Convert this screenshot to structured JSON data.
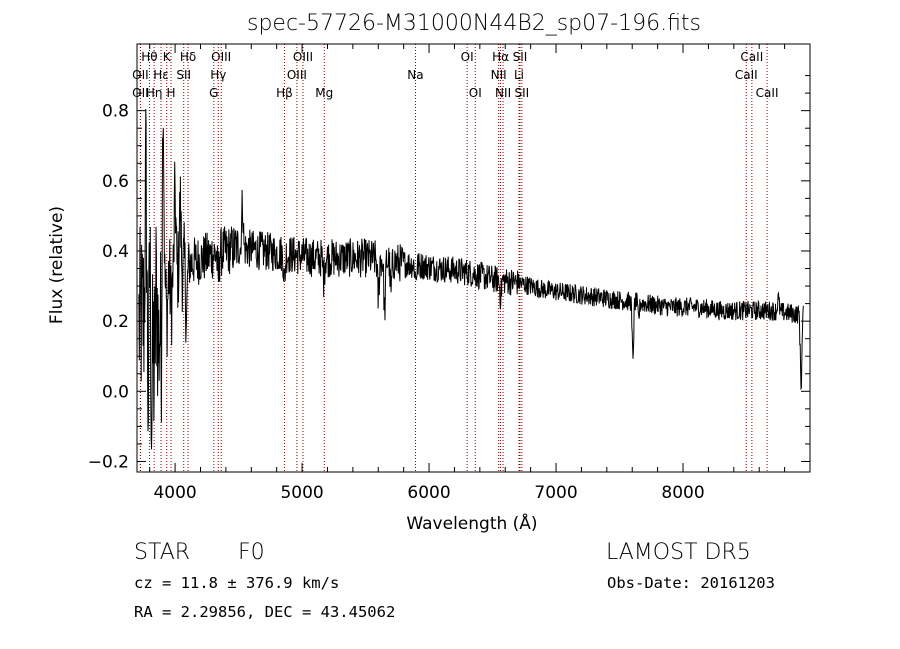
{
  "chart_data": {
    "type": "line",
    "title": "spec-57726-M31000N44B2_sp07-196.fits",
    "xlabel": "Wavelength (Å)",
    "ylabel": "Flux (relative)",
    "xlim": [
      3700,
      9000
    ],
    "ylim": [
      -0.23,
      0.99
    ],
    "xticks": [
      4000,
      5000,
      6000,
      7000,
      8000
    ],
    "yticks": [
      -0.2,
      0.0,
      0.2,
      0.4,
      0.6,
      0.8
    ],
    "ytick_labels": [
      "−0.2",
      "0.0",
      "0.2",
      "0.4",
      "0.6",
      "0.8"
    ],
    "grid": false,
    "line_color": "#000000",
    "marker_color": "#8b0000",
    "spectrum_continuum": [
      {
        "x": 3700,
        "y": 0.18
      },
      {
        "x": 3750,
        "y": 0.22
      },
      {
        "x": 3800,
        "y": 0.25
      },
      {
        "x": 3850,
        "y": 0.28
      },
      {
        "x": 3950,
        "y": 0.33
      },
      {
        "x": 4050,
        "y": 0.35
      },
      {
        "x": 4150,
        "y": 0.37
      },
      {
        "x": 4300,
        "y": 0.39
      },
      {
        "x": 4500,
        "y": 0.41
      },
      {
        "x": 4700,
        "y": 0.4
      },
      {
        "x": 4900,
        "y": 0.39
      },
      {
        "x": 5100,
        "y": 0.38
      },
      {
        "x": 5300,
        "y": 0.38
      },
      {
        "x": 5500,
        "y": 0.38
      },
      {
        "x": 5700,
        "y": 0.37
      },
      {
        "x": 5900,
        "y": 0.36
      },
      {
        "x": 6100,
        "y": 0.35
      },
      {
        "x": 6300,
        "y": 0.34
      },
      {
        "x": 6500,
        "y": 0.32
      },
      {
        "x": 6700,
        "y": 0.31
      },
      {
        "x": 6900,
        "y": 0.29
      },
      {
        "x": 7100,
        "y": 0.28
      },
      {
        "x": 7300,
        "y": 0.27
      },
      {
        "x": 7500,
        "y": 0.26
      },
      {
        "x": 7700,
        "y": 0.25
      },
      {
        "x": 7900,
        "y": 0.24
      },
      {
        "x": 8100,
        "y": 0.24
      },
      {
        "x": 8300,
        "y": 0.23
      },
      {
        "x": 8500,
        "y": 0.23
      },
      {
        "x": 8700,
        "y": 0.23
      },
      {
        "x": 8900,
        "y": 0.22
      }
    ],
    "spectrum_features": [
      {
        "x": 3770,
        "dy": 0.4
      },
      {
        "x": 3790,
        "dy": -0.32
      },
      {
        "x": 3800,
        "dy": 0.22
      },
      {
        "x": 3815,
        "dy": -0.35
      },
      {
        "x": 3835,
        "dy": -0.26
      },
      {
        "x": 3870,
        "dy": -0.18
      },
      {
        "x": 3890,
        "dy": -0.2
      },
      {
        "x": 3905,
        "dy": 0.58
      },
      {
        "x": 3935,
        "dy": -0.12
      },
      {
        "x": 3970,
        "dy": -0.1
      },
      {
        "x": 4000,
        "dy": 0.24
      },
      {
        "x": 4040,
        "dy": 0.2
      },
      {
        "x": 4090,
        "dy": -0.16
      },
      {
        "x": 4340,
        "dy": -0.08
      },
      {
        "x": 4530,
        "dy": 0.14
      },
      {
        "x": 4861,
        "dy": -0.08
      },
      {
        "x": 5170,
        "dy": -0.06
      },
      {
        "x": 5600,
        "dy": -0.12
      },
      {
        "x": 5650,
        "dy": -0.16
      },
      {
        "x": 5700,
        "dy": -0.1
      },
      {
        "x": 5895,
        "dy": -0.04
      },
      {
        "x": 6563,
        "dy": -0.05
      },
      {
        "x": 7605,
        "dy": -0.17
      },
      {
        "x": 7650,
        "dy": -0.05
      },
      {
        "x": 8750,
        "dy": 0.04
      },
      {
        "x": 8930,
        "dy": -0.22
      }
    ],
    "line_markers": [
      {
        "label": "Hθ",
        "x": 3798,
        "row": 0
      },
      {
        "label": "K",
        "x": 3934,
        "row": 0
      },
      {
        "label": "Hδ",
        "x": 4102,
        "row": 0
      },
      {
        "label": "OIII",
        "x": 4363,
        "row": 0
      },
      {
        "label": "OIII",
        "x": 5007,
        "row": 0
      },
      {
        "label": "OI",
        "x": 6300,
        "row": 0
      },
      {
        "label": "Hα",
        "x": 6563,
        "row": 0
      },
      {
        "label": "SII",
        "x": 6716,
        "row": 0
      },
      {
        "label": "CaII",
        "x": 8542,
        "row": 0
      },
      {
        "label": "OII",
        "x": 3727,
        "row": 1
      },
      {
        "label": "Hε",
        "x": 3889,
        "row": 1
      },
      {
        "label": "SII",
        "x": 4068,
        "row": 1
      },
      {
        "label": "Hγ",
        "x": 4340,
        "row": 1
      },
      {
        "label": "OIII",
        "x": 4959,
        "row": 1
      },
      {
        "label": "Na",
        "x": 5893,
        "row": 1
      },
      {
        "label": "NII",
        "x": 6548,
        "row": 1
      },
      {
        "label": "Li",
        "x": 6708,
        "row": 1
      },
      {
        "label": "CaII",
        "x": 8498,
        "row": 1
      },
      {
        "label": "OII",
        "x": 3727,
        "row": 2
      },
      {
        "label": "Hη",
        "x": 3835,
        "row": 2
      },
      {
        "label": "H",
        "x": 3968,
        "row": 2
      },
      {
        "label": "G",
        "x": 4305,
        "row": 2
      },
      {
        "label": "Hβ",
        "x": 4861,
        "row": 2
      },
      {
        "label": "Mg",
        "x": 5175,
        "row": 2
      },
      {
        "label": "OI",
        "x": 6364,
        "row": 2
      },
      {
        "label": "NII",
        "x": 6583,
        "row": 2
      },
      {
        "label": "SII",
        "x": 6731,
        "row": 2
      },
      {
        "label": "CaII",
        "x": 8662,
        "row": 2
      }
    ]
  },
  "info": {
    "class": "STAR",
    "subclass": "F0",
    "survey": "LAMOST DR5",
    "cz": "cz = 11.8 ± 376.9 km/s",
    "obs_date": "Obs-Date: 20161203",
    "coords": "RA =   2.29856, DEC =  43.45062"
  }
}
